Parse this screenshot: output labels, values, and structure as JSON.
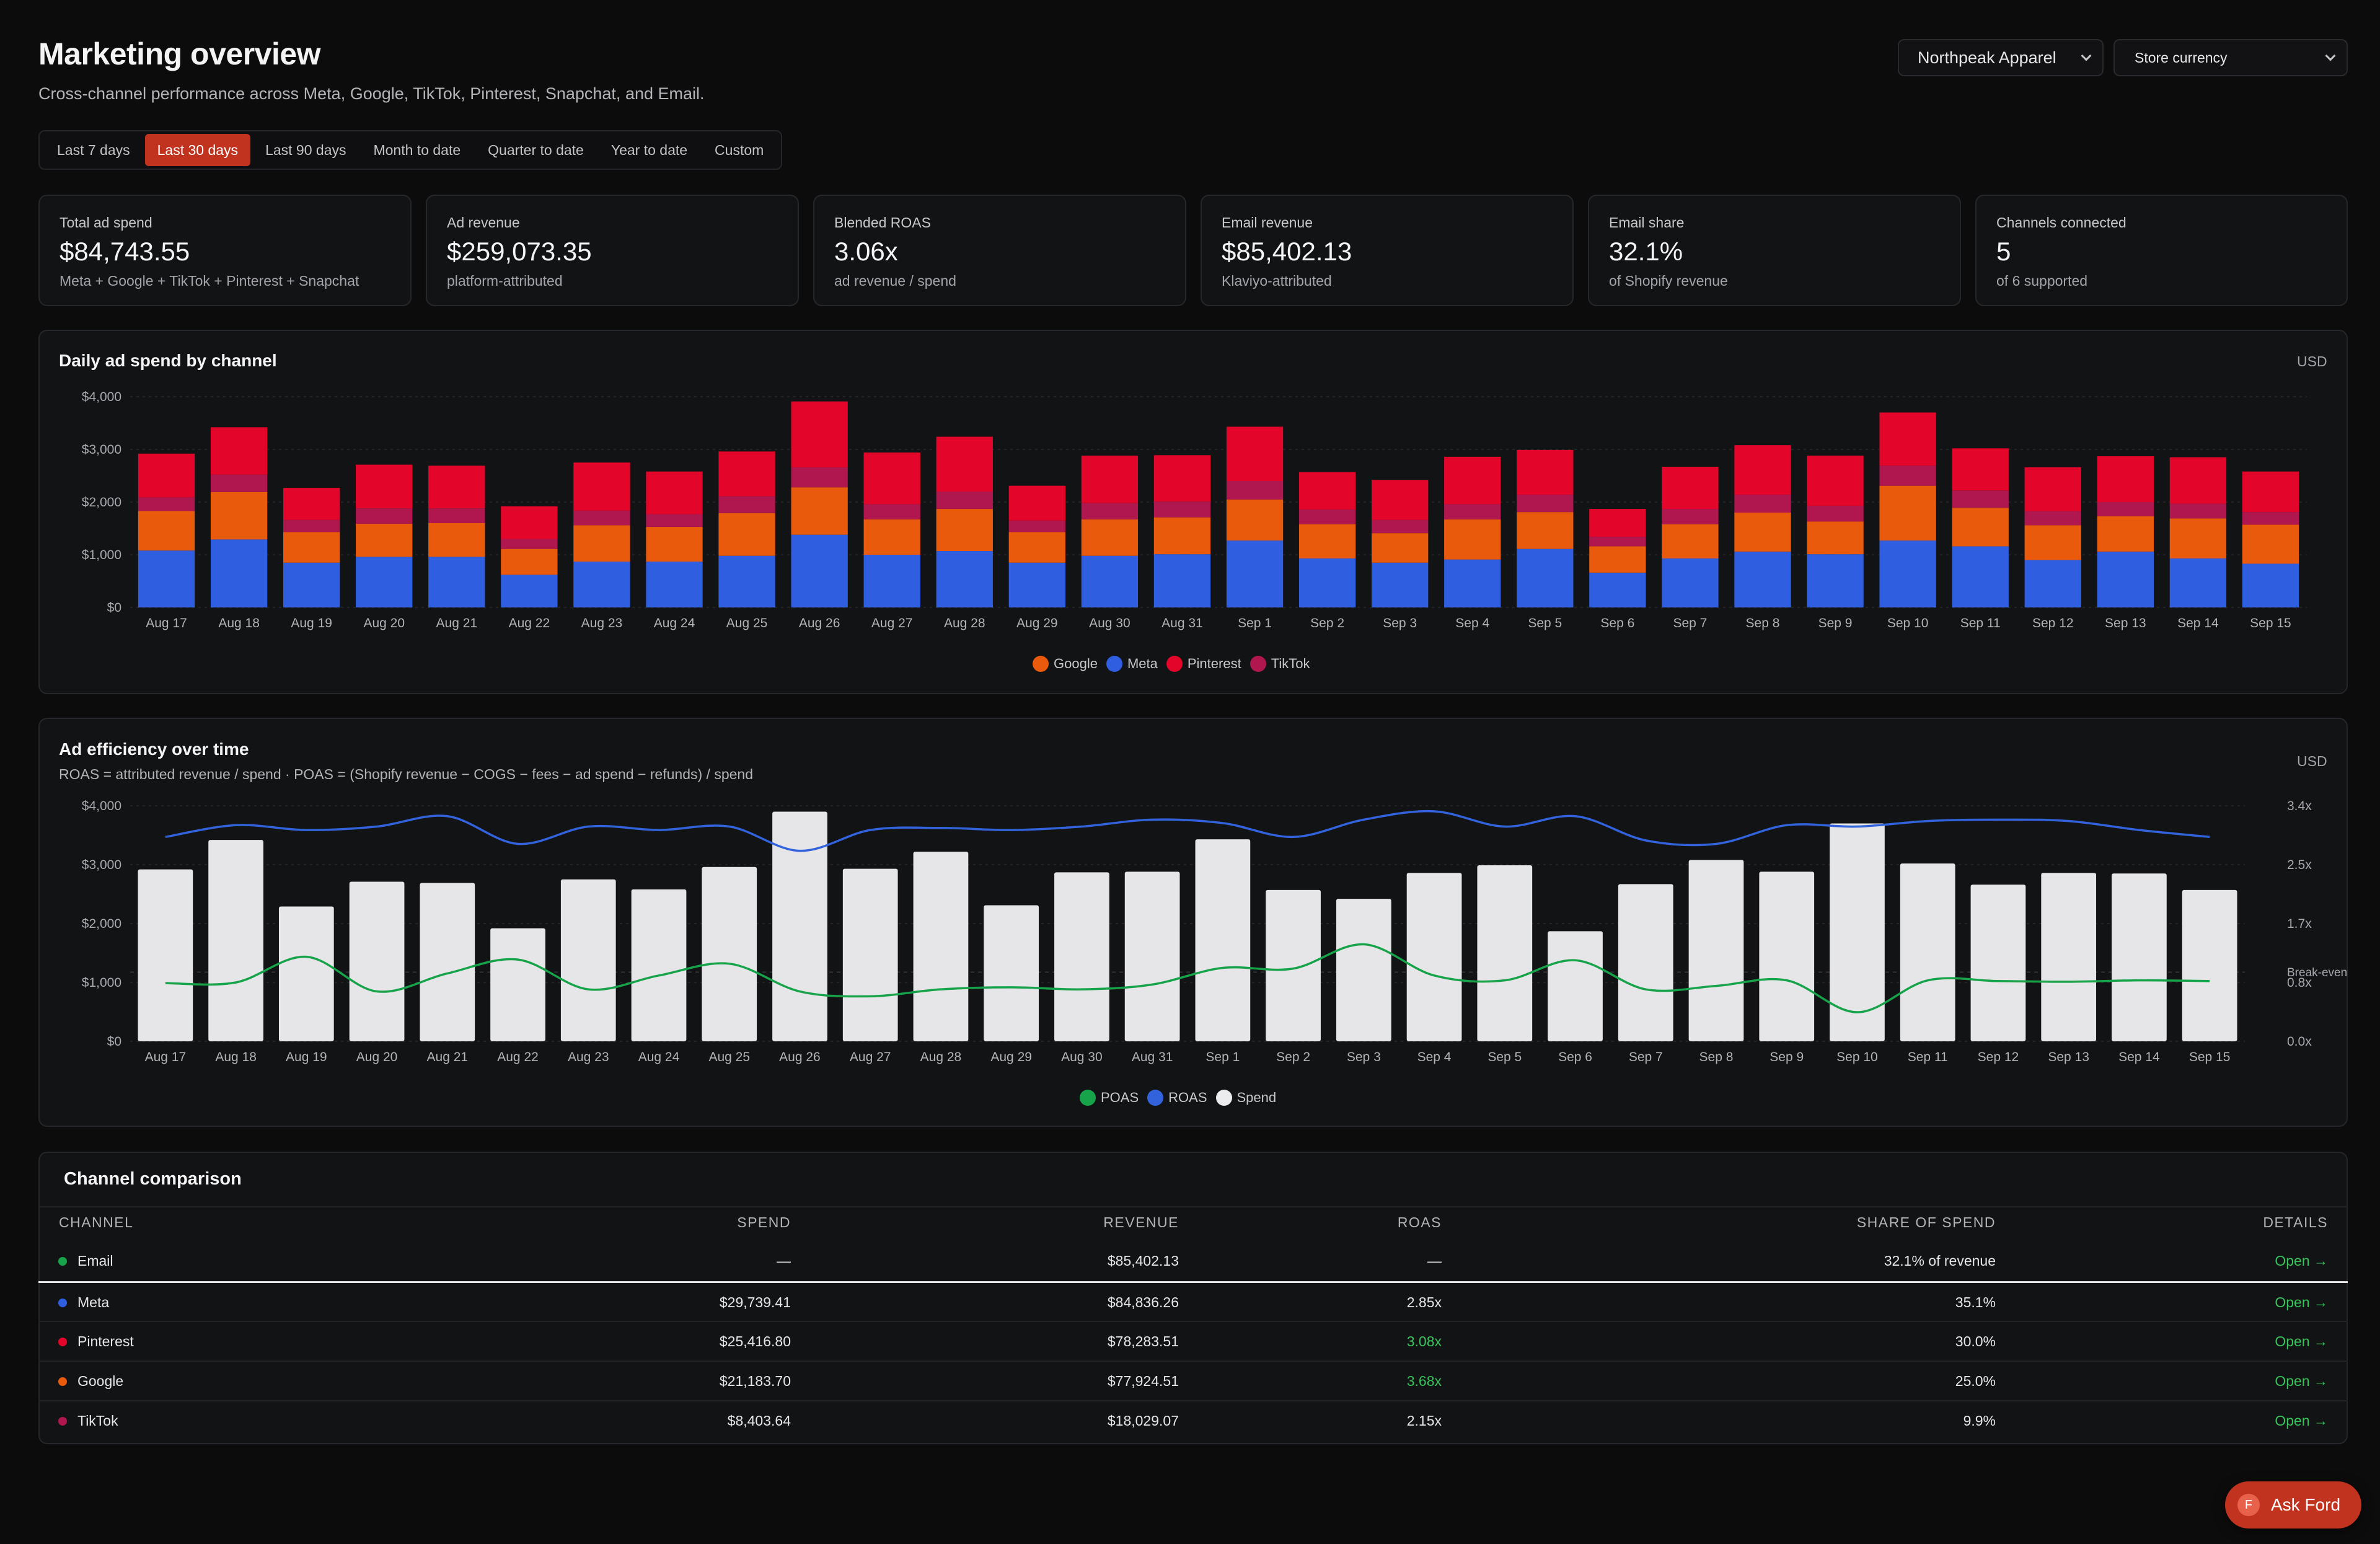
{
  "header": {
    "title": "Marketing overview",
    "subtitle": "Cross-channel performance across Meta, Google, TikTok, Pinterest, Snapchat, and Email.",
    "store_select": "Northpeak Apparel",
    "currency_select": "Store currency"
  },
  "range_tabs": [
    {
      "label": "Last 7 days",
      "active": false
    },
    {
      "label": "Last 30 days",
      "active": true
    },
    {
      "label": "Last 90 days",
      "active": false
    },
    {
      "label": "Month to date",
      "active": false
    },
    {
      "label": "Quarter to date",
      "active": false
    },
    {
      "label": "Year to date",
      "active": false
    },
    {
      "label": "Custom",
      "active": false
    }
  ],
  "stats": [
    {
      "label": "Total ad spend",
      "value": "$84,743.55",
      "sub": "Meta + Google + TikTok + Pinterest + Snapchat"
    },
    {
      "label": "Ad revenue",
      "value": "$259,073.35",
      "sub": "platform-attributed"
    },
    {
      "label": "Blended ROAS",
      "value": "3.06x",
      "sub": "ad revenue / spend"
    },
    {
      "label": "Email revenue",
      "value": "$85,402.13",
      "sub": "Klaviyo-attributed"
    },
    {
      "label": "Email share",
      "value": "32.1%",
      "sub": "of Shopify revenue"
    },
    {
      "label": "Channels connected",
      "value": "5",
      "sub": "of 6 supported"
    }
  ],
  "colors": {
    "google": "#ea5a0c",
    "meta": "#2f5fe0",
    "pinterest": "#e3062a",
    "tiktok": "#b0174f",
    "poas": "#16a34a",
    "roas": "#3263dd",
    "spend": "#e6e6e8",
    "email": "#16a34a",
    "accent": "#c2331f"
  },
  "chart_data": [
    {
      "type": "bar",
      "stacked": true,
      "title": "Daily ad spend by channel",
      "unit_label": "USD",
      "categories": [
        "Aug 17",
        "Aug 18",
        "Aug 19",
        "Aug 20",
        "Aug 21",
        "Aug 22",
        "Aug 23",
        "Aug 24",
        "Aug 25",
        "Aug 26",
        "Aug 27",
        "Aug 28",
        "Aug 29",
        "Aug 30",
        "Aug 31",
        "Sep 1",
        "Sep 2",
        "Sep 3",
        "Sep 4",
        "Sep 5",
        "Sep 6",
        "Sep 7",
        "Sep 8",
        "Sep 9",
        "Sep 10",
        "Sep 11",
        "Sep 12",
        "Sep 13",
        "Sep 14",
        "Sep 15"
      ],
      "y_ticks": [
        "$0",
        "$1,000",
        "$2,000",
        "$3,000",
        "$4,000"
      ],
      "ylim": [
        0,
        4000
      ],
      "grid": true,
      "legend_position": "bottom",
      "series": [
        {
          "name": "Meta",
          "color_key": "meta",
          "values": [
            1080,
            1290,
            850,
            960,
            960,
            620,
            870,
            870,
            980,
            1380,
            1000,
            1070,
            850,
            980,
            1010,
            1270,
            930,
            850,
            910,
            1110,
            660,
            930,
            1060,
            1010,
            1270,
            1160,
            900,
            1060,
            930,
            830
          ]
        },
        {
          "name": "Google",
          "color_key": "google",
          "values": [
            750,
            900,
            580,
            630,
            640,
            490,
            690,
            660,
            810,
            900,
            670,
            800,
            580,
            690,
            700,
            780,
            650,
            560,
            760,
            700,
            500,
            650,
            740,
            620,
            1040,
            730,
            660,
            670,
            760,
            740
          ]
        },
        {
          "name": "TikTok",
          "color_key": "tiktok",
          "values": [
            260,
            330,
            230,
            290,
            280,
            190,
            280,
            240,
            320,
            380,
            290,
            330,
            220,
            310,
            300,
            350,
            280,
            250,
            290,
            330,
            180,
            290,
            340,
            300,
            380,
            330,
            270,
            270,
            280,
            240
          ]
        },
        {
          "name": "Pinterest",
          "color_key": "pinterest",
          "values": [
            830,
            900,
            610,
            830,
            810,
            620,
            910,
            810,
            850,
            1250,
            980,
            1040,
            660,
            900,
            880,
            1030,
            710,
            760,
            900,
            850,
            530,
            800,
            940,
            950,
            1010,
            800,
            830,
            870,
            880,
            770
          ]
        }
      ]
    },
    {
      "type": "bar+line",
      "title": "Ad efficiency over time",
      "subtitle": "ROAS = attributed revenue / spend · POAS = (Shopify revenue − COGS − fees − ad spend − refunds) / spend",
      "unit_label": "USD",
      "categories": [
        "Aug 17",
        "Aug 18",
        "Aug 19",
        "Aug 20",
        "Aug 21",
        "Aug 22",
        "Aug 23",
        "Aug 24",
        "Aug 25",
        "Aug 26",
        "Aug 27",
        "Aug 28",
        "Aug 29",
        "Aug 30",
        "Aug 31",
        "Sep 1",
        "Sep 2",
        "Sep 3",
        "Sep 4",
        "Sep 5",
        "Sep 6",
        "Sep 7",
        "Sep 8",
        "Sep 9",
        "Sep 10",
        "Sep 11",
        "Sep 12",
        "Sep 13",
        "Sep 14",
        "Sep 15"
      ],
      "y_ticks": [
        "$0",
        "$1,000",
        "$2,000",
        "$3,000",
        "$4,000"
      ],
      "ylim": [
        0,
        4000
      ],
      "y2_ticks": [
        "0.0x",
        "0.8x",
        "1.7x",
        "2.5x",
        "3.4x"
      ],
      "y2lim": [
        0,
        3.4
      ],
      "break_even_label": "Break-even",
      "break_even_value": 1.0,
      "legend_position": "bottom",
      "series": [
        {
          "name": "Spend",
          "kind": "bar",
          "color_key": "spend",
          "values": [
            2920,
            3420,
            2290,
            2710,
            2690,
            1920,
            2750,
            2580,
            2960,
            3900,
            2930,
            3220,
            2310,
            2870,
            2880,
            3430,
            2570,
            2420,
            2860,
            2990,
            1870,
            2670,
            3080,
            2880,
            3700,
            3020,
            2660,
            2860,
            2850,
            2570
          ]
        },
        {
          "name": "ROAS",
          "kind": "line",
          "axis": "right",
          "color_key": "roas",
          "values": [
            2.95,
            3.12,
            3.05,
            3.1,
            3.25,
            2.85,
            3.1,
            3.05,
            3.1,
            2.75,
            3.05,
            3.08,
            3.05,
            3.1,
            3.2,
            3.15,
            2.95,
            3.2,
            3.32,
            3.1,
            3.25,
            2.9,
            2.85,
            3.12,
            3.1,
            3.18,
            3.2,
            3.18,
            3.05,
            2.95
          ]
        },
        {
          "name": "POAS",
          "kind": "line",
          "axis": "right",
          "color_key": "poas",
          "values": [
            0.84,
            0.85,
            1.22,
            0.72,
            0.98,
            1.18,
            0.75,
            0.95,
            1.12,
            0.72,
            0.65,
            0.75,
            0.78,
            0.75,
            0.82,
            1.06,
            1.05,
            1.4,
            0.95,
            0.88,
            1.17,
            0.75,
            0.8,
            0.88,
            0.42,
            0.88,
            0.87,
            0.86,
            0.88,
            0.87
          ]
        }
      ]
    }
  ],
  "channels_table": {
    "title": "Channel comparison",
    "columns": {
      "channel": "CHANNEL",
      "spend": "SPEND",
      "revenue": "REVENUE",
      "roas": "ROAS",
      "share": "SHARE OF SPEND",
      "details": "DETAILS"
    },
    "rows": [
      {
        "channel": "Email",
        "color_key": "email",
        "spend": "—",
        "revenue": "$85,402.13",
        "roas": "—",
        "roas_highlight": false,
        "share": "32.1% of revenue",
        "details": "Open →"
      },
      {
        "channel": "Meta",
        "color_key": "meta",
        "spend": "$29,739.41",
        "revenue": "$84,836.26",
        "roas": "2.85x",
        "roas_highlight": false,
        "share": "35.1%",
        "details": "Open →"
      },
      {
        "channel": "Pinterest",
        "color_key": "pinterest",
        "spend": "$25,416.80",
        "revenue": "$78,283.51",
        "roas": "3.08x",
        "roas_highlight": true,
        "share": "30.0%",
        "details": "Open →"
      },
      {
        "channel": "Google",
        "color_key": "google",
        "spend": "$21,183.70",
        "revenue": "$77,924.51",
        "roas": "3.68x",
        "roas_highlight": true,
        "share": "25.0%",
        "details": "Open →"
      },
      {
        "channel": "TikTok",
        "color_key": "tiktok",
        "spend": "$8,403.64",
        "revenue": "$18,029.07",
        "roas": "2.15x",
        "roas_highlight": false,
        "share": "9.9%",
        "details": "Open →"
      }
    ]
  },
  "assistant_button": {
    "avatar": "F",
    "label": "Ask Ford"
  }
}
